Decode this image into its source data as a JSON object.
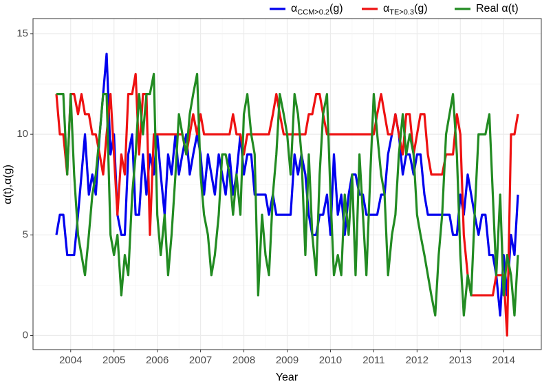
{
  "chart_data": {
    "type": "line",
    "x_label": "Year",
    "y_label": "α(t),α(g)",
    "x": [
      2003.67,
      2003.75,
      2003.83,
      2003.92,
      2004,
      2004.08,
      2004.17,
      2004.25,
      2004.33,
      2004.42,
      2004.5,
      2004.58,
      2004.67,
      2004.75,
      2004.83,
      2004.92,
      2005,
      2005.08,
      2005.17,
      2005.25,
      2005.33,
      2005.42,
      2005.5,
      2005.58,
      2005.67,
      2005.75,
      2005.83,
      2005.92,
      2006,
      2006.08,
      2006.17,
      2006.25,
      2006.33,
      2006.42,
      2006.5,
      2006.58,
      2006.67,
      2006.75,
      2006.83,
      2006.92,
      2007,
      2007.08,
      2007.17,
      2007.25,
      2007.33,
      2007.42,
      2007.5,
      2007.58,
      2007.67,
      2007.75,
      2007.83,
      2007.92,
      2008,
      2008.08,
      2008.17,
      2008.25,
      2008.33,
      2008.42,
      2008.5,
      2008.58,
      2008.67,
      2008.75,
      2008.83,
      2008.92,
      2009,
      2009.08,
      2009.17,
      2009.25,
      2009.33,
      2009.42,
      2009.5,
      2009.58,
      2009.67,
      2009.75,
      2009.83,
      2009.92,
      2010,
      2010.08,
      2010.17,
      2010.25,
      2010.33,
      2010.42,
      2010.5,
      2010.58,
      2010.67,
      2010.75,
      2010.83,
      2010.92,
      2011,
      2011.08,
      2011.17,
      2011.25,
      2011.33,
      2011.42,
      2011.5,
      2011.58,
      2011.67,
      2011.75,
      2011.83,
      2011.92,
      2012,
      2012.08,
      2012.17,
      2012.25,
      2012.33,
      2012.42,
      2012.5,
      2012.58,
      2012.67,
      2012.75,
      2012.83,
      2012.92,
      2013,
      2013.08,
      2013.17,
      2013.25,
      2013.33,
      2013.42,
      2013.5,
      2013.58,
      2013.67,
      2013.75,
      2013.83,
      2013.92,
      2014,
      2014.08,
      2014.17,
      2014.25,
      2014.33
    ],
    "series": [
      {
        "name": "α",
        "subscript": "CCM>0.2",
        "suffix": "(g)",
        "color": "#0000ee",
        "values": [
          5,
          6,
          6,
          4,
          4,
          4,
          6,
          8,
          10,
          7,
          8,
          7,
          10,
          12,
          14,
          9,
          10,
          6,
          5,
          5,
          9,
          10,
          6,
          6,
          9,
          7,
          9,
          8,
          10,
          8,
          6,
          9,
          8,
          10,
          8,
          9,
          10,
          8,
          9,
          10,
          9,
          7,
          9,
          8,
          7,
          9,
          8,
          7,
          9,
          7,
          8,
          10,
          8,
          9,
          9,
          7,
          7,
          7,
          7,
          6,
          7,
          6,
          6,
          6,
          6,
          6,
          9,
          8,
          9,
          8,
          6,
          5,
          5,
          6,
          6,
          7,
          5,
          9,
          6,
          7,
          5,
          7,
          8,
          8,
          7,
          7,
          6,
          6,
          6,
          6,
          7,
          7,
          9,
          10,
          11,
          10,
          8,
          9,
          9,
          8,
          9,
          9,
          7,
          6,
          6,
          6,
          6,
          6,
          6,
          6,
          5,
          5,
          7,
          6,
          8,
          7,
          6,
          5,
          6,
          6,
          4,
          4,
          3,
          1,
          4,
          2,
          5,
          4,
          7
        ]
      },
      {
        "name": "α",
        "subscript": "TE>0.3",
        "suffix": "(g)",
        "color": "#ee1111",
        "values": [
          12,
          10,
          10,
          8,
          12,
          12,
          11,
          12,
          11,
          11,
          10,
          10,
          9,
          8,
          10,
          12,
          9,
          6,
          9,
          8,
          12,
          12,
          13,
          9,
          12,
          12,
          5,
          10,
          10,
          10,
          10,
          10,
          10,
          10,
          10,
          10,
          9,
          10,
          11,
          10,
          11,
          10,
          10,
          10,
          10,
          10,
          10,
          10,
          10,
          11,
          10,
          10,
          9,
          10,
          10,
          10,
          10,
          10,
          10,
          10,
          11,
          12,
          11,
          10,
          10,
          10,
          10,
          10,
          10,
          10,
          11,
          11,
          12,
          12,
          11,
          10,
          10,
          10,
          10,
          10,
          10,
          10,
          10,
          10,
          10,
          10,
          10,
          10,
          10,
          11,
          12,
          11,
          10,
          10,
          11,
          10,
          9,
          11,
          11,
          9,
          10,
          11,
          11,
          9,
          8,
          8,
          8,
          8,
          9,
          9,
          9,
          11,
          10,
          5,
          3,
          2,
          2,
          2,
          2,
          2,
          2,
          2,
          3,
          3,
          3,
          0,
          10,
          10,
          11
        ]
      },
      {
        "name": "Real α(t)",
        "color": "#228b22",
        "values": [
          12,
          12,
          12,
          8,
          12,
          8,
          5,
          4,
          3,
          5,
          7,
          8,
          10,
          12,
          12,
          5,
          4,
          5,
          2,
          4,
          3,
          7,
          9,
          12,
          10,
          12,
          12,
          13,
          6,
          4,
          6,
          3,
          5,
          8,
          11,
          10,
          9,
          11,
          12,
          13,
          8,
          6,
          5,
          3,
          4,
          6,
          9,
          9,
          8,
          6,
          8,
          6,
          11,
          12,
          10,
          9,
          2,
          6,
          4,
          3,
          7,
          9,
          12,
          11,
          10,
          8,
          12,
          11,
          9,
          4,
          9,
          5,
          3,
          8,
          11,
          12,
          7,
          3,
          4,
          3,
          7,
          5,
          8,
          3,
          9,
          6,
          3,
          8,
          12,
          10,
          8,
          7,
          3,
          5,
          6,
          9,
          11,
          9,
          10,
          9,
          6,
          5,
          4,
          3,
          2,
          1,
          4,
          6,
          10,
          11,
          12,
          9,
          4,
          1,
          3,
          2,
          6,
          10,
          10,
          10,
          11,
          7,
          3,
          7,
          2,
          4,
          3,
          1,
          4
        ]
      }
    ],
    "xlim": [
      2003.13,
      2014.87
    ],
    "xticks": [
      2004,
      2005,
      2006,
      2007,
      2008,
      2009,
      2010,
      2011,
      2012,
      2013,
      2014
    ],
    "ylim": [
      -0.7,
      15.75
    ],
    "yticks": [
      0,
      5,
      10,
      15
    ],
    "grid": true,
    "legend": "top-right"
  }
}
